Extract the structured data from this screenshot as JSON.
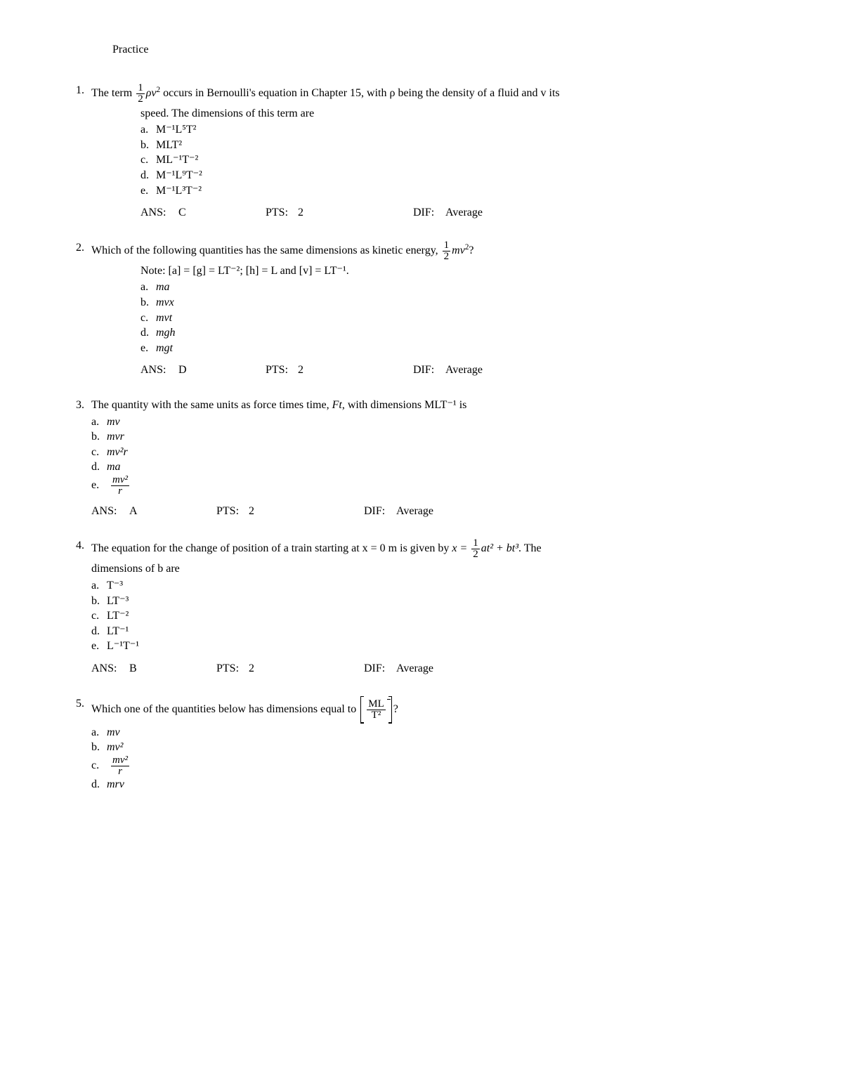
{
  "title": "Practice",
  "ans_label": "ANS:",
  "pts_label": "PTS:",
  "dif_label": "DIF:",
  "questions": [
    {
      "num": "1.",
      "stem_pre": "The term ",
      "stem_post": " occurs in Bernoulli's equation in Chapter 15, with ρ being the density of a fluid and v its",
      "stem_line2": "speed. The dimensions of this term are",
      "choices": {
        "a": "M⁻¹L⁵T²",
        "b": "MLT²",
        "c": "ML⁻¹T⁻²",
        "d": "M⁻¹L⁹T⁻²",
        "e": "M⁻¹L³T⁻²"
      },
      "ans": "C",
      "pts": "2",
      "dif": "Average"
    },
    {
      "num": "2.",
      "stem_pre": "Which of the following quantities has the same dimensions as kinetic energy, ",
      "stem_post": "?",
      "note": "Note: [a] = [g] = LT⁻²; [h] = L and [v] = LT⁻¹.",
      "choices": {
        "a": "ma",
        "b": "mvx",
        "c": "mvt",
        "d": "mgh",
        "e": "mgt"
      },
      "ans": "D",
      "pts": "2",
      "dif": "Average"
    },
    {
      "num": "3.",
      "stem": "The quantity with the same units as force times time, Ft, with dimensions MLT⁻¹ is",
      "choices": {
        "a": "mv",
        "b": "mvr",
        "c": "mv²r",
        "d": "ma"
      },
      "choice_e_num": "mv²",
      "choice_e_den": "r",
      "ans": "A",
      "pts": "2",
      "dif": "Average"
    },
    {
      "num": "4.",
      "stem_pre": "The equation for the change of position of a train starting at x = 0 m is given by ",
      "stem_eq_lhs": "x = ",
      "stem_eq_mid": "at² + bt³",
      "stem_post": ". The",
      "stem_line2": "dimensions of b are",
      "choices": {
        "a": "T⁻³",
        "b": "LT⁻³",
        "c": "LT⁻²",
        "d": "LT⁻¹",
        "e": "L⁻¹T⁻¹"
      },
      "ans": "B",
      "pts": "2",
      "dif": "Average"
    },
    {
      "num": "5.",
      "stem_pre": "Which one of the quantities below has dimensions equal to ",
      "stem_post": "?",
      "bracket_num": "ML",
      "bracket_den": "T²",
      "choices": {
        "a": "mv",
        "b": "mv²",
        "d": "mrv"
      },
      "choice_c_num": "mv²",
      "choice_c_den": "r"
    }
  ]
}
